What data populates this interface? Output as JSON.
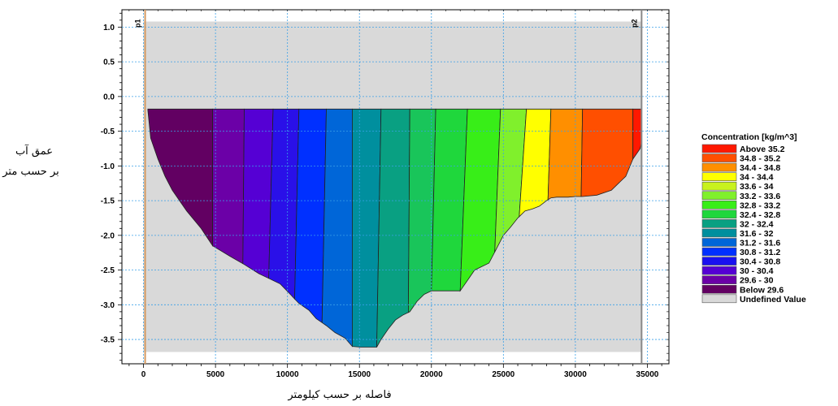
{
  "chart_data": {
    "type": "area",
    "title": "",
    "xlabel": "فاصله بر حسب کیلومتر",
    "ylabel": [
      "عمق آب",
      "بر حسب متر"
    ],
    "xlim": [
      -1500,
      36500
    ],
    "ylim": [
      -3.85,
      1.25
    ],
    "x_ticks": [
      0,
      5000,
      10000,
      15000,
      20000,
      25000,
      30000,
      35000
    ],
    "y_ticks": [
      1.0,
      0.5,
      0.0,
      -0.5,
      -1.0,
      -1.5,
      -2.0,
      -2.5,
      -3.0,
      -3.5
    ],
    "x_tick_labels": [
      "0",
      "5000",
      "10000",
      "15000",
      "20000",
      "25000",
      "30000",
      "35000"
    ],
    "y_tick_labels": [
      "1.0",
      "0.5",
      "0.0",
      "-0.5",
      "-1.0",
      "-1.5",
      "-2.0",
      "-2.5",
      "-3.0",
      "-3.5"
    ],
    "grid": true,
    "background": {
      "x": [
        0,
        34600
      ],
      "y": [
        -3.68,
        1.08
      ],
      "color": "#d9d9d9"
    },
    "water_surface": -0.18,
    "bottom_profile": {
      "x": [
        300,
        500,
        1000,
        1500,
        2000,
        3000,
        4000,
        4800,
        6000,
        7000,
        8000,
        9000,
        9500,
        10200,
        10800,
        11500,
        12000,
        12700,
        13300,
        14000,
        14500,
        15100,
        15600,
        16200,
        16500,
        17000,
        17500,
        18000,
        18500,
        19000,
        19500,
        20000,
        21000,
        22000,
        22500,
        23000,
        24000,
        24500,
        25000,
        25500,
        26000,
        26500,
        27000,
        27500,
        28000,
        28300,
        28700,
        29500,
        30000,
        30500,
        31500,
        32500,
        33000,
        33500,
        34000,
        34500,
        34600
      ],
      "y": [
        -0.2,
        -0.6,
        -0.9,
        -1.15,
        -1.35,
        -1.65,
        -1.9,
        -2.15,
        -2.3,
        -2.42,
        -2.55,
        -2.65,
        -2.7,
        -2.85,
        -2.98,
        -3.08,
        -3.2,
        -3.3,
        -3.4,
        -3.48,
        -3.6,
        -3.61,
        -3.61,
        -3.61,
        -3.5,
        -3.35,
        -3.22,
        -3.15,
        -3.1,
        -2.95,
        -2.85,
        -2.8,
        -2.8,
        -2.8,
        -2.65,
        -2.5,
        -2.4,
        -2.2,
        -2.0,
        -1.88,
        -1.75,
        -1.65,
        -1.62,
        -1.58,
        -1.5,
        -1.46,
        -1.45,
        -1.45,
        -1.44,
        -1.44,
        -1.42,
        -1.35,
        -1.25,
        -1.15,
        -0.9,
        -0.75,
        -0.65
      ]
    },
    "band_boundaries": {
      "surface_x": [
        300,
        4800,
        7000,
        9000,
        10800,
        12700,
        14500,
        16500,
        18500,
        20300,
        22500,
        24800,
        26600,
        28300,
        30500,
        34000,
        34600
      ],
      "bottom_x": [
        300,
        4800,
        6900,
        8700,
        10500,
        12400,
        14500,
        16200,
        18400,
        20000,
        22000,
        24400,
        26100,
        28100,
        30400,
        34000,
        34600
      ]
    },
    "band_colors": [
      "#620062",
      "#6b00a7",
      "#5500d4",
      "#2a10e8",
      "#0030ff",
      "#0066d8",
      "#008f9e",
      "#09a082",
      "#19c55a",
      "#1fd73c",
      "#38ee18",
      "#80f02c",
      "#ffff00",
      "#ff8f00",
      "#ff4f00",
      "#ff1800"
    ],
    "markers": [
      {
        "x": 0,
        "label": "p1",
        "color": "#d49a62"
      },
      {
        "x": 34600,
        "label": "p2",
        "color": "#888888"
      }
    ],
    "legend": {
      "title": "Concentration [kg/m^3]",
      "placement": "right",
      "entries": [
        {
          "label": "Above 35.2",
          "color": "#ff1800"
        },
        {
          "label": "34.8 - 35.2",
          "color": "#ff4f00"
        },
        {
          "label": "34.4 - 34.8",
          "color": "#ff8f00"
        },
        {
          "label": "34 - 34.4",
          "color": "#ffff00"
        },
        {
          "label": "33.6 -    34",
          "color": "#c8f21e"
        },
        {
          "label": "33.2 - 33.6",
          "color": "#80f02c"
        },
        {
          "label": "32.8 - 33.2",
          "color": "#38ee18"
        },
        {
          "label": "32.4 - 32.8",
          "color": "#1fd73c"
        },
        {
          "label": "32 - 32.4",
          "color": "#09a082"
        },
        {
          "label": "31.6 -    32",
          "color": "#008f9e"
        },
        {
          "label": "31.2 - 31.6",
          "color": "#0066d8"
        },
        {
          "label": "30.8 - 31.2",
          "color": "#0030ff"
        },
        {
          "label": "30.4 - 30.8",
          "color": "#1a10f0"
        },
        {
          "label": "30 - 30.4",
          "color": "#5500d4"
        },
        {
          "label": "29.6 -    30",
          "color": "#6b00a7"
        },
        {
          "label": "Below 29.6",
          "color": "#620062"
        },
        {
          "label": "Undefined Value",
          "color": "#d9d9d9"
        }
      ]
    }
  }
}
